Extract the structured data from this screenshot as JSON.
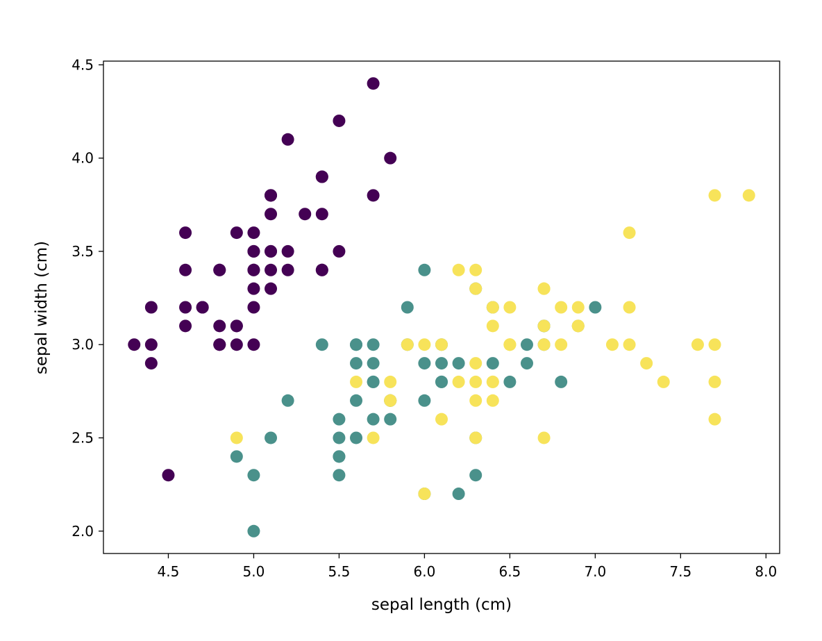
{
  "chart_data": {
    "type": "scatter",
    "title": "",
    "xlabel": "sepal length (cm)",
    "ylabel": "sepal width (cm)",
    "xlim": [
      4.12,
      8.08
    ],
    "ylim": [
      1.88,
      4.52
    ],
    "xticks": [
      "4.5",
      "5.0",
      "5.5",
      "6.0",
      "6.5",
      "7.0",
      "7.5",
      "8.0"
    ],
    "yticks": [
      "2.0",
      "2.5",
      "3.0",
      "3.5",
      "4.0",
      "4.5"
    ],
    "grid": false,
    "colors": [
      "#440154",
      "#4a918b",
      "#f7e35a"
    ],
    "series": [
      {
        "class": 0,
        "points": [
          [
            5.1,
            3.5
          ],
          [
            4.9,
            3.0
          ],
          [
            4.7,
            3.2
          ],
          [
            4.6,
            3.1
          ],
          [
            5.0,
            3.6
          ],
          [
            5.4,
            3.9
          ],
          [
            4.6,
            3.4
          ],
          [
            5.0,
            3.4
          ],
          [
            4.4,
            2.9
          ],
          [
            4.9,
            3.1
          ],
          [
            5.4,
            3.7
          ],
          [
            4.8,
            3.4
          ],
          [
            4.8,
            3.0
          ],
          [
            4.3,
            3.0
          ],
          [
            5.8,
            4.0
          ],
          [
            5.7,
            4.4
          ],
          [
            5.4,
            3.9
          ],
          [
            5.1,
            3.5
          ],
          [
            5.7,
            3.8
          ],
          [
            5.1,
            3.8
          ],
          [
            5.4,
            3.4
          ],
          [
            5.1,
            3.7
          ],
          [
            4.6,
            3.6
          ],
          [
            5.1,
            3.3
          ],
          [
            4.8,
            3.4
          ],
          [
            5.0,
            3.0
          ],
          [
            5.0,
            3.4
          ],
          [
            5.2,
            3.5
          ],
          [
            5.2,
            3.4
          ],
          [
            4.7,
            3.2
          ],
          [
            4.8,
            3.1
          ],
          [
            5.4,
            3.4
          ],
          [
            5.2,
            4.1
          ],
          [
            5.5,
            4.2
          ],
          [
            4.9,
            3.1
          ],
          [
            5.0,
            3.2
          ],
          [
            5.5,
            3.5
          ],
          [
            4.9,
            3.6
          ],
          [
            4.4,
            3.0
          ],
          [
            5.1,
            3.4
          ],
          [
            5.0,
            3.5
          ],
          [
            4.5,
            2.3
          ],
          [
            4.4,
            3.2
          ],
          [
            5.0,
            3.5
          ],
          [
            5.1,
            3.8
          ],
          [
            4.8,
            3.0
          ],
          [
            5.1,
            3.8
          ],
          [
            4.6,
            3.2
          ],
          [
            5.3,
            3.7
          ],
          [
            5.0,
            3.3
          ]
        ]
      },
      {
        "class": 1,
        "points": [
          [
            7.0,
            3.2
          ],
          [
            6.4,
            3.2
          ],
          [
            6.9,
            3.1
          ],
          [
            5.5,
            2.3
          ],
          [
            6.5,
            2.8
          ],
          [
            5.7,
            2.8
          ],
          [
            6.3,
            3.3
          ],
          [
            4.9,
            2.4
          ],
          [
            6.6,
            2.9
          ],
          [
            5.2,
            2.7
          ],
          [
            5.0,
            2.0
          ],
          [
            5.9,
            3.0
          ],
          [
            6.0,
            2.2
          ],
          [
            6.1,
            2.9
          ],
          [
            5.6,
            2.9
          ],
          [
            6.7,
            3.1
          ],
          [
            5.6,
            3.0
          ],
          [
            5.8,
            2.7
          ],
          [
            6.2,
            2.2
          ],
          [
            5.6,
            2.5
          ],
          [
            5.9,
            3.2
          ],
          [
            6.1,
            2.8
          ],
          [
            6.3,
            2.5
          ],
          [
            6.1,
            2.8
          ],
          [
            6.4,
            2.9
          ],
          [
            6.6,
            3.0
          ],
          [
            6.8,
            2.8
          ],
          [
            6.7,
            3.0
          ],
          [
            6.0,
            2.9
          ],
          [
            5.7,
            2.6
          ],
          [
            5.5,
            2.4
          ],
          [
            5.5,
            2.4
          ],
          [
            5.8,
            2.7
          ],
          [
            6.0,
            2.7
          ],
          [
            5.4,
            3.0
          ],
          [
            6.0,
            3.4
          ],
          [
            6.7,
            3.1
          ],
          [
            6.3,
            2.3
          ],
          [
            5.6,
            3.0
          ],
          [
            5.5,
            2.5
          ],
          [
            5.5,
            2.6
          ],
          [
            6.1,
            3.0
          ],
          [
            5.8,
            2.6
          ],
          [
            5.0,
            2.3
          ],
          [
            5.6,
            2.7
          ],
          [
            5.7,
            3.0
          ],
          [
            5.7,
            2.9
          ],
          [
            6.2,
            2.9
          ],
          [
            5.1,
            2.5
          ],
          [
            5.7,
            2.8
          ]
        ]
      },
      {
        "class": 2,
        "points": [
          [
            6.3,
            3.3
          ],
          [
            5.8,
            2.7
          ],
          [
            7.1,
            3.0
          ],
          [
            6.3,
            2.9
          ],
          [
            6.5,
            3.0
          ],
          [
            7.6,
            3.0
          ],
          [
            4.9,
            2.5
          ],
          [
            7.3,
            2.9
          ],
          [
            6.7,
            2.5
          ],
          [
            7.2,
            3.6
          ],
          [
            6.5,
            3.2
          ],
          [
            6.4,
            2.7
          ],
          [
            6.8,
            3.0
          ],
          [
            5.7,
            2.5
          ],
          [
            5.8,
            2.8
          ],
          [
            6.4,
            3.2
          ],
          [
            6.5,
            3.0
          ],
          [
            7.7,
            3.8
          ],
          [
            7.7,
            2.6
          ],
          [
            6.0,
            2.2
          ],
          [
            6.9,
            3.2
          ],
          [
            5.6,
            2.8
          ],
          [
            7.7,
            2.8
          ],
          [
            6.3,
            2.7
          ],
          [
            6.7,
            3.3
          ],
          [
            7.2,
            3.2
          ],
          [
            6.2,
            2.8
          ],
          [
            6.1,
            3.0
          ],
          [
            6.4,
            2.8
          ],
          [
            7.2,
            3.0
          ],
          [
            7.4,
            2.8
          ],
          [
            7.9,
            3.8
          ],
          [
            6.4,
            2.8
          ],
          [
            6.3,
            2.8
          ],
          [
            6.1,
            2.6
          ],
          [
            7.7,
            3.0
          ],
          [
            6.3,
            3.4
          ],
          [
            6.4,
            3.1
          ],
          [
            6.0,
            3.0
          ],
          [
            6.9,
            3.1
          ],
          [
            6.7,
            3.1
          ],
          [
            6.9,
            3.1
          ],
          [
            5.8,
            2.7
          ],
          [
            6.8,
            3.2
          ],
          [
            6.7,
            3.3
          ],
          [
            6.7,
            3.0
          ],
          [
            6.3,
            2.5
          ],
          [
            6.5,
            3.0
          ],
          [
            6.2,
            3.4
          ],
          [
            5.9,
            3.0
          ]
        ]
      }
    ]
  }
}
